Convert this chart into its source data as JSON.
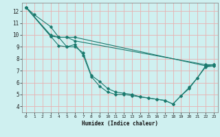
{
  "title": "",
  "xlabel": "Humidex (Indice chaleur)",
  "ylabel": "",
  "bg_color": "#cff0f0",
  "grid_color": "#e8b0b0",
  "line_color": "#1a7a6e",
  "xlim": [
    -0.5,
    23.5
  ],
  "ylim": [
    3.5,
    12.7
  ],
  "xticks": [
    0,
    1,
    2,
    3,
    4,
    5,
    6,
    7,
    8,
    9,
    10,
    11,
    12,
    13,
    14,
    15,
    16,
    17,
    18,
    19,
    20,
    21,
    22,
    23
  ],
  "yticks": [
    4,
    5,
    6,
    7,
    8,
    9,
    10,
    11,
    12
  ],
  "series": [
    {
      "x": [
        0,
        1,
        3,
        4,
        5,
        6,
        7,
        8,
        9,
        10,
        11,
        12,
        13,
        14,
        15,
        16,
        17,
        18,
        19,
        20,
        21,
        22,
        23
      ],
      "y": [
        12.3,
        11.7,
        10.7,
        9.8,
        9.0,
        9.0,
        8.5,
        6.6,
        6.1,
        5.5,
        5.2,
        5.1,
        5.0,
        4.8,
        4.7,
        4.6,
        4.5,
        4.2,
        4.9,
        5.5,
        6.4,
        7.3,
        7.4
      ]
    },
    {
      "x": [
        0,
        3,
        4,
        5,
        6,
        7,
        8,
        9,
        10,
        11,
        12,
        13,
        14,
        15,
        16,
        17,
        18,
        19,
        20,
        21,
        22,
        23
      ],
      "y": [
        12.3,
        9.9,
        9.1,
        9.0,
        9.2,
        8.3,
        6.5,
        5.7,
        5.2,
        5.0,
        5.0,
        4.9,
        4.8,
        4.7,
        4.6,
        4.5,
        4.2,
        4.9,
        5.6,
        6.4,
        7.4,
        7.5
      ]
    },
    {
      "x": [
        0,
        3,
        4,
        5,
        6,
        22,
        23
      ],
      "y": [
        12.3,
        9.9,
        9.8,
        9.8,
        9.5,
        7.5,
        7.5
      ]
    },
    {
      "x": [
        0,
        3,
        4,
        5,
        6,
        22,
        23
      ],
      "y": [
        12.3,
        10.0,
        9.8,
        9.8,
        9.8,
        7.4,
        7.4
      ]
    }
  ]
}
